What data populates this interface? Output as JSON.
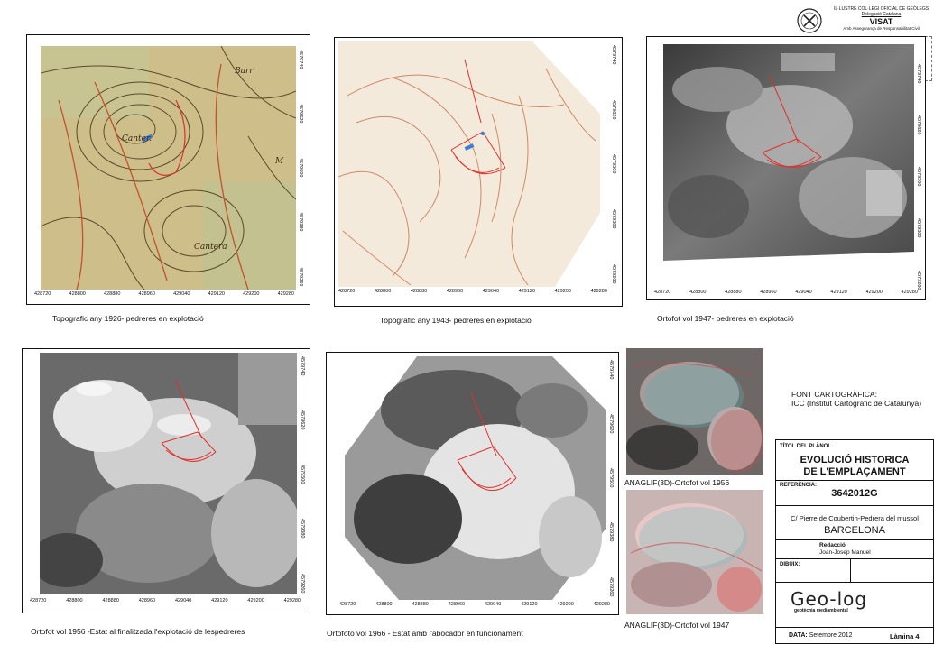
{
  "stamp": {
    "org_line1": "IL·LUSTRE COL·LEGI OFICIAL DE GEÒLEGS",
    "org_line2": "Delegació Catalana",
    "title": "VISAT",
    "subtitle": "Amb Assegurança de Responsabilitat Civil",
    "date_line": "Data: 17/10/2012 Registre: 2012/E/1400",
    "geologist_line": "Col·legiat: MANUEL-JUANGRAN JOSEP",
    "number_line": "Núm. Col·legiat: 4225",
    "signature": "M."
  },
  "axes": {
    "x_ticks": [
      "428720",
      "428800",
      "428880",
      "428960",
      "429040",
      "429120",
      "429200",
      "429280"
    ],
    "y_ticks": [
      "4579740",
      "4579620",
      "4579500",
      "4579380",
      "4579260"
    ]
  },
  "maps": [
    {
      "caption": "Topografic any 1926- pedreres en explotació",
      "style": "topo-old"
    },
    {
      "caption": "Topografic any 1943- pedreres en explotació",
      "style": "topo-light"
    },
    {
      "caption": "Ortofot vol 1947- pedreres en explotació",
      "style": "ortho"
    },
    {
      "caption": "Ortofot vol 1956 -Estat al finalitzada l'explotació de lespedreres",
      "style": "ortho"
    },
    {
      "caption": "Ortofoto vol 1966 - Estat amb l'abocador en funcionament",
      "style": "ortho-light"
    }
  ],
  "anaglyphs": [
    {
      "caption": "ANAGLIF(3D)-Ortofot vol 1956"
    },
    {
      "caption": "ANAGLIF(3D)-Ortofot vol 1947"
    }
  ],
  "source": {
    "line1": "FONT CARTOGRÀFICA:",
    "line2": "ICC (Institut Cartogràfic de Catalunya)"
  },
  "title_block": {
    "title_label": "TÍTOL DEL PLÀNOL",
    "title_line1": "EVOLUCIÓ HISTORICA",
    "title_line2": "DE L'EMPLAÇAMENT",
    "ref_label": "REFERÈNCIA:",
    "ref_value": "3642012G",
    "address": "C/ Pierre de Coubertin-Pedrera del mussol",
    "city": "BARCELONA",
    "redaction_label": "Redacció",
    "redaction_name": "Joan-Josep Manuel",
    "drawing_label": "DIBUIX:",
    "logo_text": "Geo-log",
    "logo_sub": "geotècnia mediambiental",
    "date_label": "DATA:",
    "date_value": "Setembre 2012",
    "sheet_label": "Làmina 4"
  },
  "colors": {
    "contour": "#c8704a",
    "red_overlay": "#e0302a",
    "topo_old_bg": "#cfc08e",
    "topo_light_bg": "#f3eadc"
  }
}
